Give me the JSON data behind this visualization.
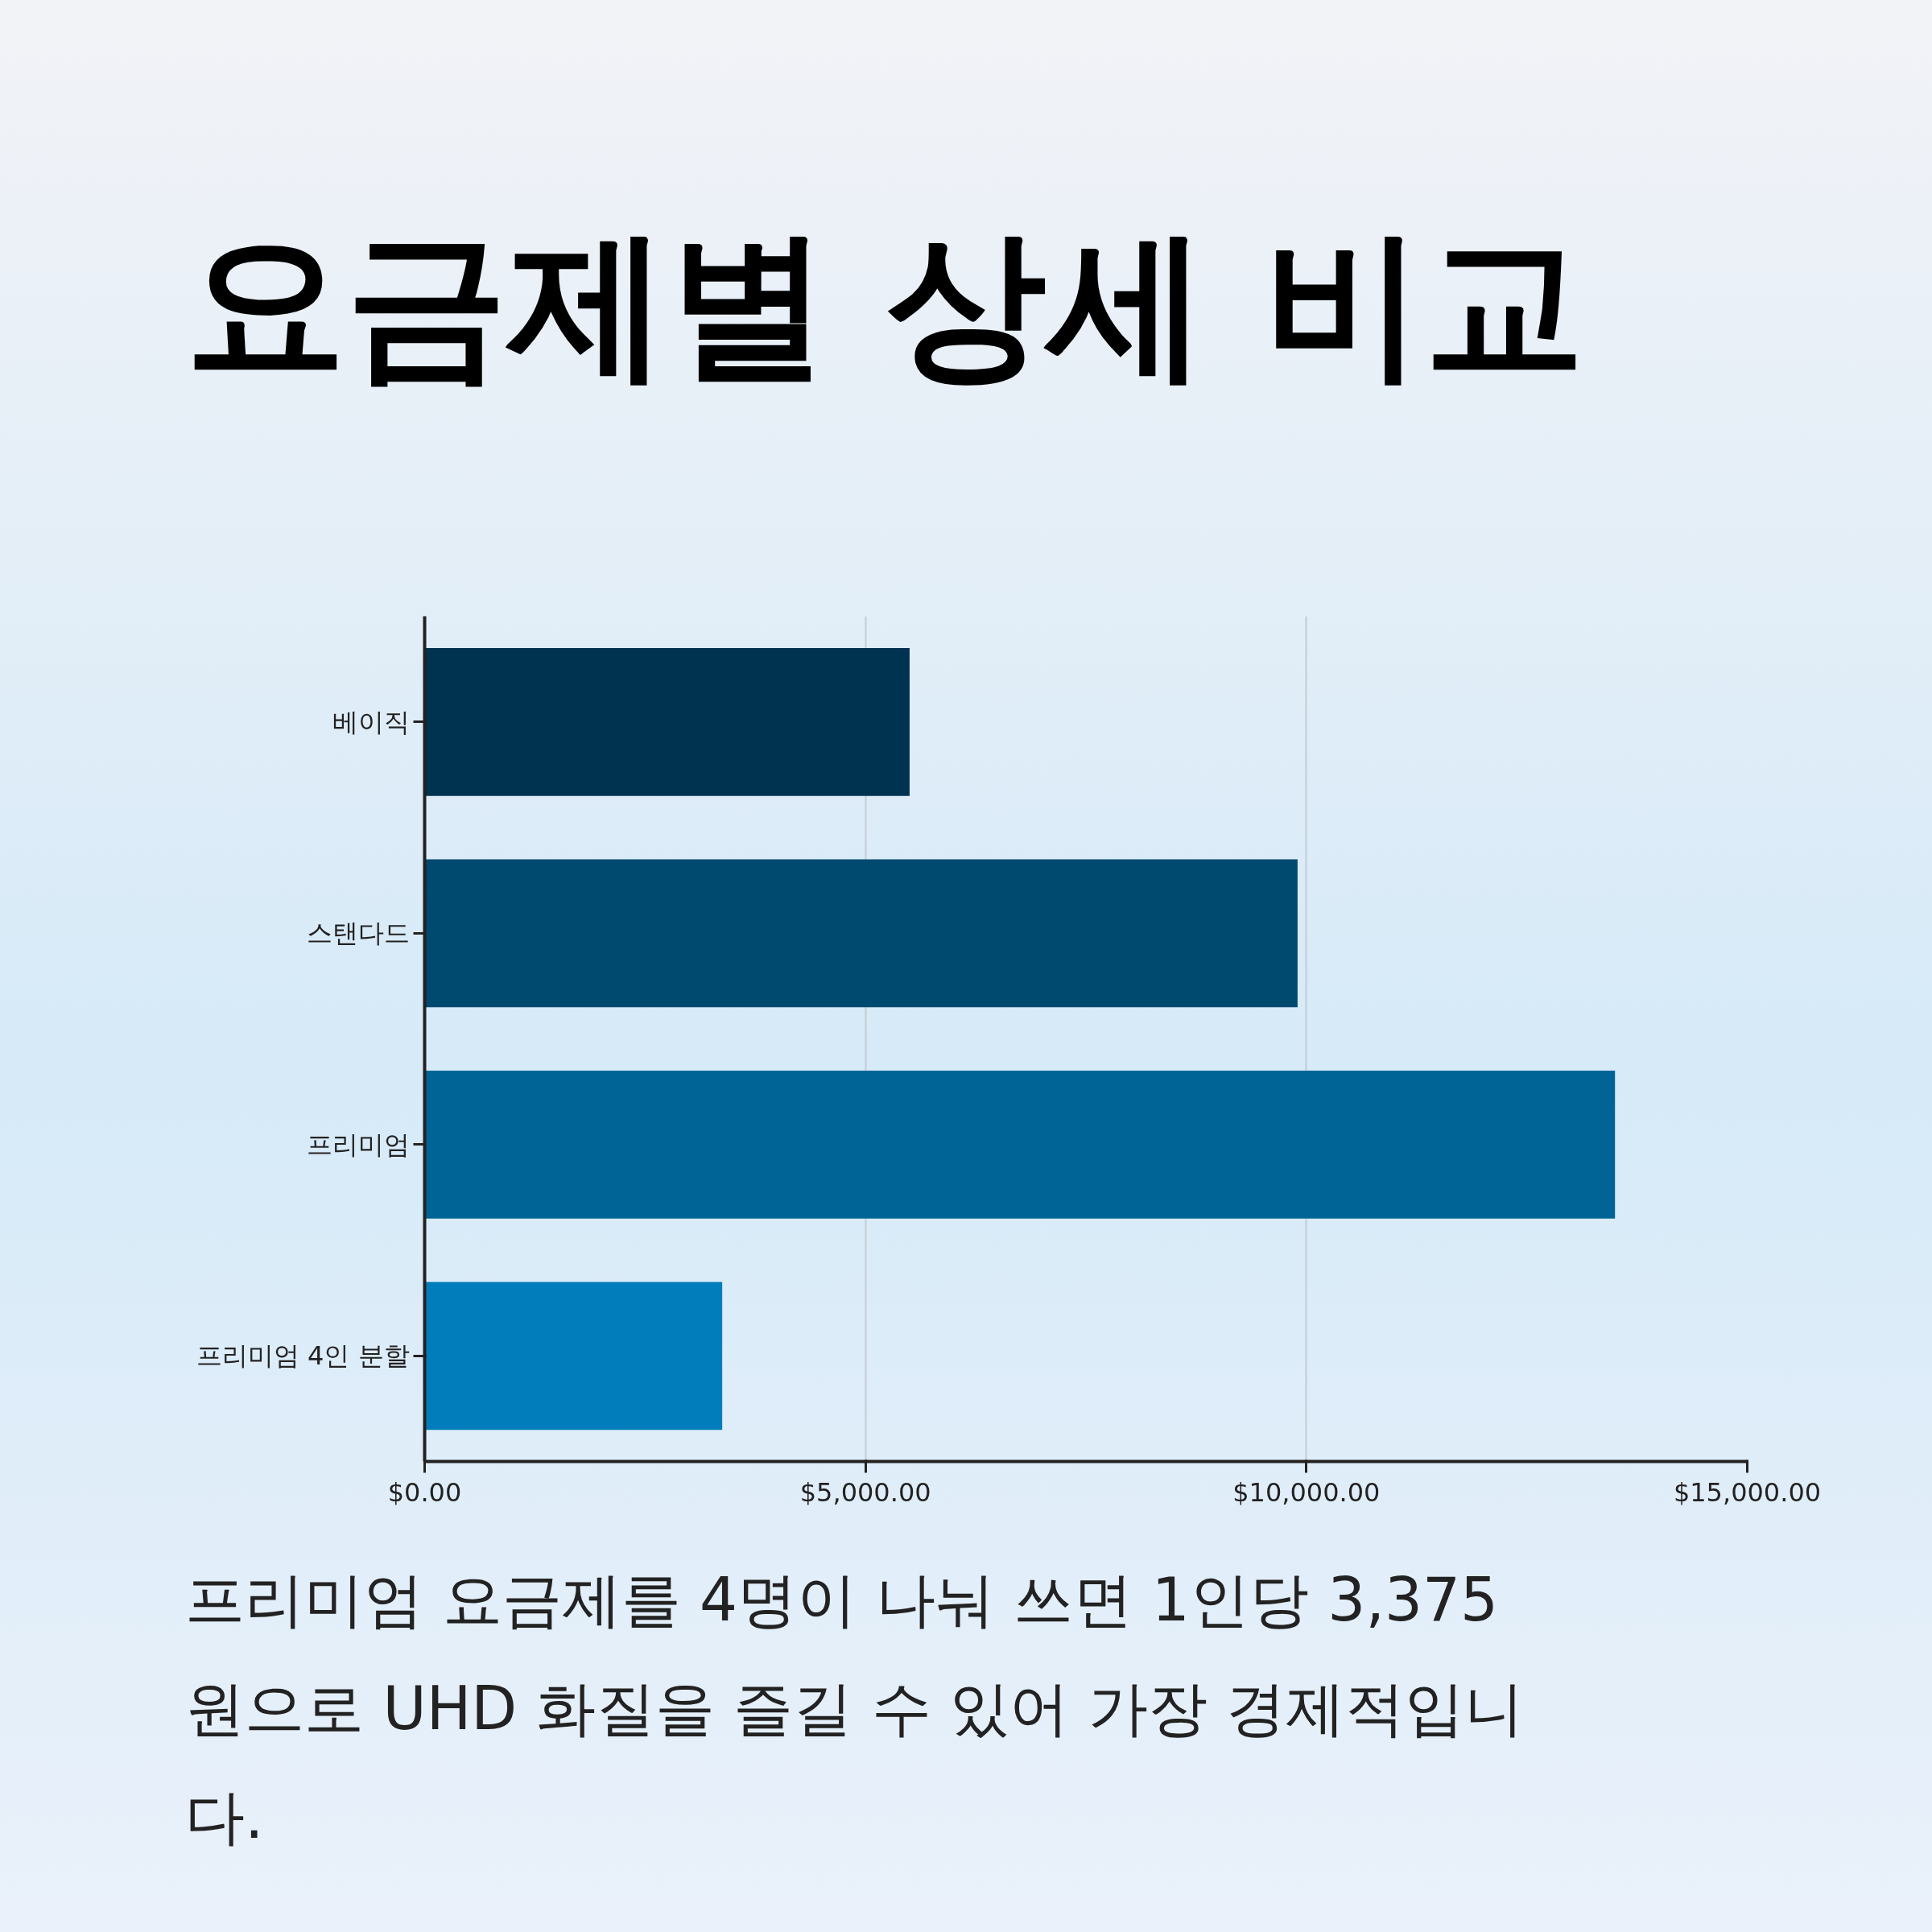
{
  "chart_data": {
    "type": "bar",
    "orientation": "horizontal",
    "title": "요금제별 상세 비교",
    "categories": [
      "베이직",
      "스탠다드",
      "프리미엄",
      "프리미엄 4인 분할"
    ],
    "values": [
      5500,
      9900,
      13500,
      3375
    ],
    "colors": [
      "#003350",
      "#00496f",
      "#006496",
      "#007dba"
    ],
    "xlim": [
      0,
      15000
    ],
    "xticks": [
      {
        "value": 0,
        "label": "$0.00"
      },
      {
        "value": 5000,
        "label": "$5,000.00"
      },
      {
        "value": 10000,
        "label": "$10,000.00"
      },
      {
        "value": 15000,
        "label": "$15,000.00"
      }
    ],
    "grid": "x",
    "annotations": [
      "프리미엄 요금제를 4명이 나눠 쓰면 1인당 3,375원으로 UHD 화질을 즐길 수 있어 가장 경제적입니다."
    ]
  }
}
